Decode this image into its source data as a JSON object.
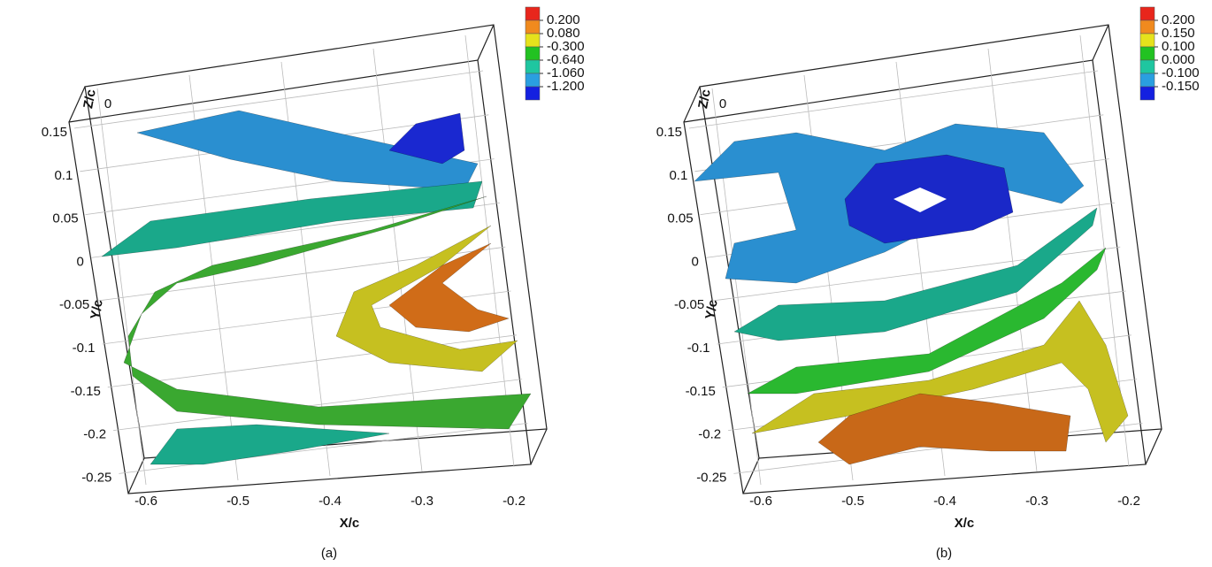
{
  "panels": [
    {
      "caption": "(a)",
      "x_label": "X/c",
      "y_label": "Y/c",
      "z_label": "Z/c",
      "z_tick": 0,
      "xticks": [
        -0.6,
        -0.5,
        -0.4,
        -0.3,
        -0.2
      ],
      "yticks": [
        0.15,
        0.1,
        0.05,
        0,
        -0.05,
        -0.1,
        -0.15,
        -0.2,
        -0.25
      ],
      "legend": {
        "levels": [
          {
            "value": 0.2,
            "label": "0.200"
          },
          {
            "value": 0.08,
            "label": "0.080"
          },
          {
            "value": -0.3,
            "label": "-0.300"
          },
          {
            "value": -0.64,
            "label": "-0.640"
          },
          {
            "value": -1.06,
            "label": "-1.060"
          },
          {
            "value": -1.2,
            "label": "-1.200"
          }
        ],
        "colors": [
          "#e8261c",
          "#f08a1e",
          "#e6e21c",
          "#22c222",
          "#1fc6a0",
          "#2a9fe0",
          "#1420e0"
        ]
      }
    },
    {
      "caption": "(b)",
      "x_label": "X/c",
      "y_label": "Y/c",
      "z_label": "Z/c",
      "z_tick": 0,
      "xticks": [
        -0.6,
        -0.5,
        -0.4,
        -0.3,
        -0.2
      ],
      "yticks": [
        0.15,
        0.1,
        0.05,
        0,
        -0.05,
        -0.1,
        -0.15,
        -0.2,
        -0.25
      ],
      "legend": {
        "levels": [
          {
            "value": 0.2,
            "label": "0.200"
          },
          {
            "value": 0.15,
            "label": "0.150"
          },
          {
            "value": 0.1,
            "label": "0.100"
          },
          {
            "value": 0,
            "label": "0.000"
          },
          {
            "value": -0.1,
            "label": "-0.100"
          },
          {
            "value": -0.15,
            "label": "-0.150"
          }
        ],
        "colors": [
          "#e8261c",
          "#f08a1e",
          "#e6e21c",
          "#22c222",
          "#1fc6a0",
          "#2a9fe0",
          "#1420e0"
        ]
      }
    }
  ]
}
